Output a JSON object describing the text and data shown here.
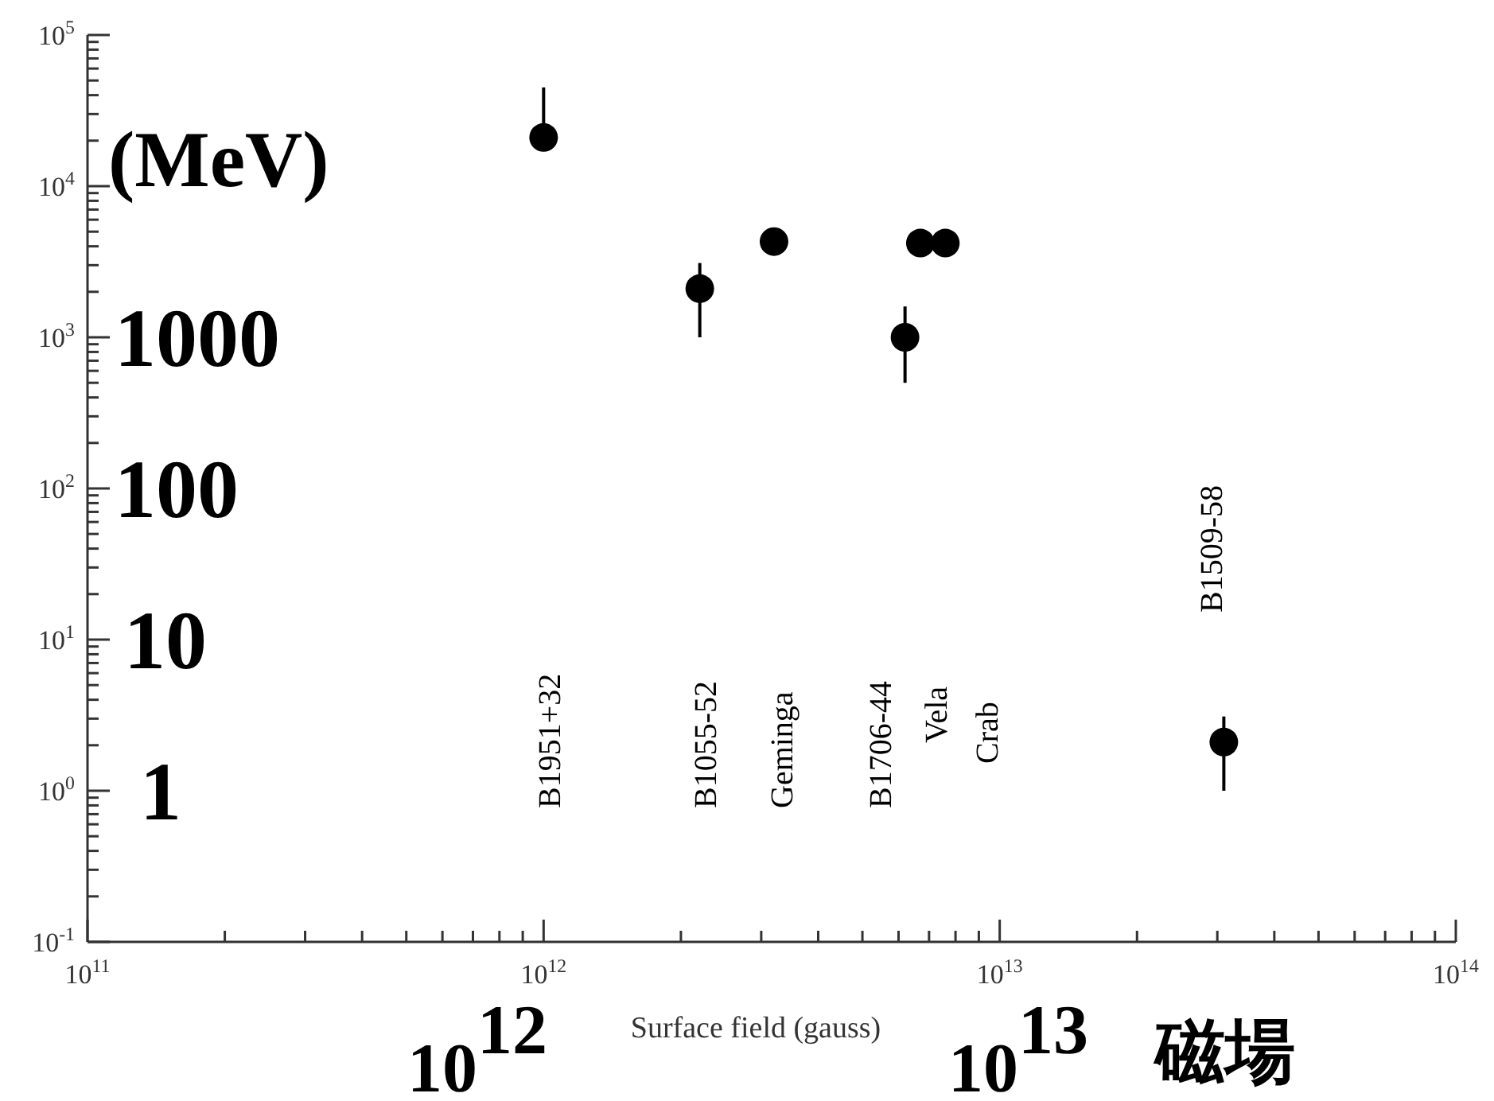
{
  "chart_data": {
    "type": "scatter",
    "ylabel": "(MeV)",
    "xlabel": "Surface field (gauss)",
    "log": "xy",
    "marker": "circle",
    "color": "#000000",
    "x": [
      1000000000000.0,
      2200000000000.0,
      3200000000000.0,
      6200000000000.0,
      6700000000000.0,
      7600000000000.0,
      31000000000000.0
    ],
    "values": [
      21000,
      2100,
      4300,
      1000,
      4200,
      4200,
      2.1
    ],
    "errors": [
      [
        21000,
        45000
      ],
      [
        1000,
        3100
      ],
      [
        3500,
        5000
      ],
      [
        500,
        1600
      ],
      [
        3500,
        4900
      ],
      [
        3500,
        4900
      ],
      [
        1,
        3.1
      ]
    ],
    "xlim": [
      100000000000.0,
      100000000000000.0
    ],
    "ylim": [
      0.1,
      100000
    ],
    "xticks": [
      {
        "value": 100000000000.0,
        "label": "10$^{11}$"
      },
      {
        "value": 200000000000.0,
        "label": null
      },
      {
        "value": 300000000000.0,
        "label": null
      },
      {
        "value": 400000000000.0,
        "label": null
      },
      {
        "value": 500000000000.0,
        "label": null
      },
      {
        "value": 600000000000.0,
        "label": null
      },
      {
        "value": 700000000000.0,
        "label": null
      },
      {
        "value": 800000000000.0,
        "label": null
      },
      {
        "value": 900000000000.0,
        "label": null
      },
      {
        "value": 1000000000000.0,
        "label": "10$^{12}$"
      },
      {
        "value": 2000000000000.0,
        "label": null
      },
      {
        "value": 3000000000000.0,
        "label": null
      },
      {
        "value": 4000000000000.0,
        "label": null
      },
      {
        "value": 5000000000000.0,
        "label": null
      },
      {
        "value": 6000000000000.0,
        "label": null
      },
      {
        "value": 7000000000000.0,
        "label": null
      },
      {
        "value": 8000000000000.0,
        "label": null
      },
      {
        "value": 9000000000000.0,
        "label": null
      },
      {
        "value": 10000000000000.0,
        "label": "10$^{13}$"
      },
      {
        "value": 20000000000000.0,
        "label": null
      },
      {
        "value": 30000000000000.0,
        "label": null
      },
      {
        "value": 40000000000000.0,
        "label": null
      },
      {
        "value": 50000000000000.0,
        "label": null
      },
      {
        "value": 60000000000000.0,
        "label": null
      },
      {
        "value": 70000000000000.0,
        "label": null
      },
      {
        "value": 80000000000000.0,
        "label": null
      },
      {
        "value": 90000000000000.0,
        "label": null
      },
      {
        "value": 100000000000000.0,
        "label": "10$^{14}$"
      }
    ],
    "yticks": [
      {
        "value": 0.1,
        "label": "10$^{-1}$"
      },
      {
        "value": 0.2,
        "label": null
      },
      {
        "value": 0.3,
        "label": null
      },
      {
        "value": 0.4,
        "label": null
      },
      {
        "value": 0.5,
        "label": null
      },
      {
        "value": 0.6,
        "label": null
      },
      {
        "value": 0.7,
        "label": null
      },
      {
        "value": 0.8,
        "label": null
      },
      {
        "value": 0.9,
        "label": null
      },
      {
        "value": 1,
        "label": "10$^{0}$"
      },
      {
        "value": 2,
        "label": null
      },
      {
        "value": 3,
        "label": null
      },
      {
        "value": 4,
        "label": null
      },
      {
        "value": 5,
        "label": null
      },
      {
        "value": 6,
        "label": null
      },
      {
        "value": 7,
        "label": null
      },
      {
        "value": 8,
        "label": null
      },
      {
        "value": 9,
        "label": null
      },
      {
        "value": 10,
        "label": "10$^{1}$"
      },
      {
        "value": 20,
        "label": null
      },
      {
        "value": 30,
        "label": null
      },
      {
        "value": 40,
        "label": null
      },
      {
        "value": 50,
        "label": null
      },
      {
        "value": 60,
        "label": null
      },
      {
        "value": 70,
        "label": null
      },
      {
        "value": 80,
        "label": null
      },
      {
        "value": 90,
        "label": null
      },
      {
        "value": 100,
        "label": "10$^{2}$"
      },
      {
        "value": 200,
        "label": null
      },
      {
        "value": 300,
        "label": null
      },
      {
        "value": 400,
        "label": null
      },
      {
        "value": 500,
        "label": null
      },
      {
        "value": 600,
        "label": null
      },
      {
        "value": 700,
        "label": null
      },
      {
        "value": 800,
        "label": null
      },
      {
        "value": 900,
        "label": null
      },
      {
        "value": 1000,
        "label": "10$^{3}$"
      },
      {
        "value": 2000,
        "label": null
      },
      {
        "value": 3000,
        "label": null
      },
      {
        "value": 4000,
        "label": null
      },
      {
        "value": 5000,
        "label": null
      },
      {
        "value": 6000,
        "label": null
      },
      {
        "value": 7000,
        "label": null
      },
      {
        "value": 8000,
        "label": null
      },
      {
        "value": 9000,
        "label": null
      },
      {
        "value": 10000,
        "label": "10$^{4}$"
      },
      {
        "value": 20000,
        "label": null
      },
      {
        "value": 30000,
        "label": null
      },
      {
        "value": 40000,
        "label": null
      },
      {
        "value": 50000,
        "label": null
      },
      {
        "value": 60000,
        "label": null
      },
      {
        "value": 70000,
        "label": null
      },
      {
        "value": 80000,
        "label": null
      },
      {
        "value": 90000,
        "label": null
      },
      {
        "value": 100000,
        "label": "10$^{5}$"
      }
    ],
    "annotations": [
      "B1951+32",
      "B1055-52",
      "Geminga",
      "B1706-44",
      "Vela",
      "Crab",
      "B1509-58",
      "1000",
      "100",
      "10",
      "1",
      "10$^{12}$",
      "10$^{13}$",
      "磁場"
    ]
  }
}
